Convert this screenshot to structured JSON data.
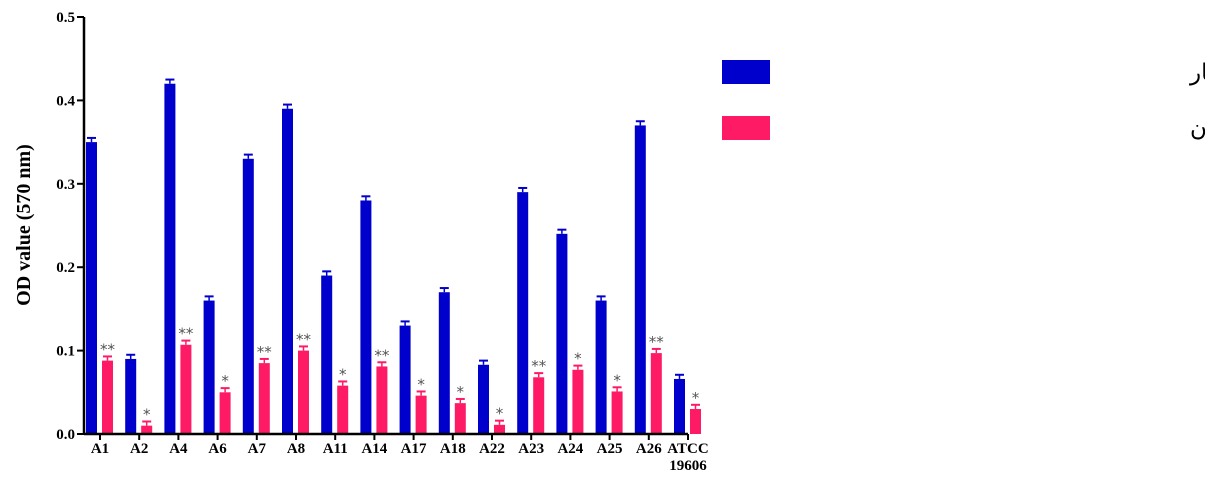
{
  "chart_data": {
    "type": "bar",
    "ylabel": "OD value (570 nm)",
    "ylim": [
      0,
      0.5
    ],
    "yticks": [
      "0.0",
      "0.1",
      "0.2",
      "0.3",
      "0.4",
      "0.5"
    ],
    "categories": [
      [
        "A1"
      ],
      [
        "A2"
      ],
      [
        "A4"
      ],
      [
        "A6"
      ],
      [
        "A7"
      ],
      [
        "A8"
      ],
      [
        "A11"
      ],
      [
        "A14"
      ],
      [
        "A17"
      ],
      [
        "A18"
      ],
      [
        "A22"
      ],
      [
        "A23"
      ],
      [
        "A24"
      ],
      [
        "A25"
      ],
      [
        "A26"
      ],
      [
        "ATCC",
        "19606"
      ]
    ],
    "legend_position": "top-right",
    "series": [
      {
        "name": "جذب نوری قبل از تیمار",
        "color": "#0000cc",
        "values": [
          0.35,
          0.09,
          0.42,
          0.16,
          0.33,
          0.39,
          0.19,
          0.28,
          0.13,
          0.17,
          0.083,
          0.29,
          0.24,
          0.16,
          0.37,
          0.066
        ],
        "errors": [
          0.005,
          0.005,
          0.005,
          0.005,
          0.005,
          0.005,
          0.005,
          0.005,
          0.005,
          0.005,
          0.005,
          0.005,
          0.005,
          0.005,
          0.005,
          0.005
        ]
      },
      {
        "name": "جذب نوری پس از تیمار با کیتوسان",
        "color": "#ff1a66",
        "values": [
          0.088,
          0.01,
          0.107,
          0.05,
          0.085,
          0.1,
          0.058,
          0.081,
          0.046,
          0.037,
          0.011,
          0.068,
          0.077,
          0.051,
          0.097,
          0.03
        ],
        "errors": [
          0.005,
          0.005,
          0.005,
          0.005,
          0.005,
          0.005,
          0.005,
          0.005,
          0.005,
          0.005,
          0.005,
          0.005,
          0.005,
          0.005,
          0.005,
          0.005
        ],
        "significance": [
          "**",
          "*",
          "**",
          "*",
          "**",
          "**",
          "*",
          "**",
          "*",
          "*",
          "*",
          "**",
          "*",
          "*",
          "**",
          "*"
        ]
      }
    ]
  }
}
